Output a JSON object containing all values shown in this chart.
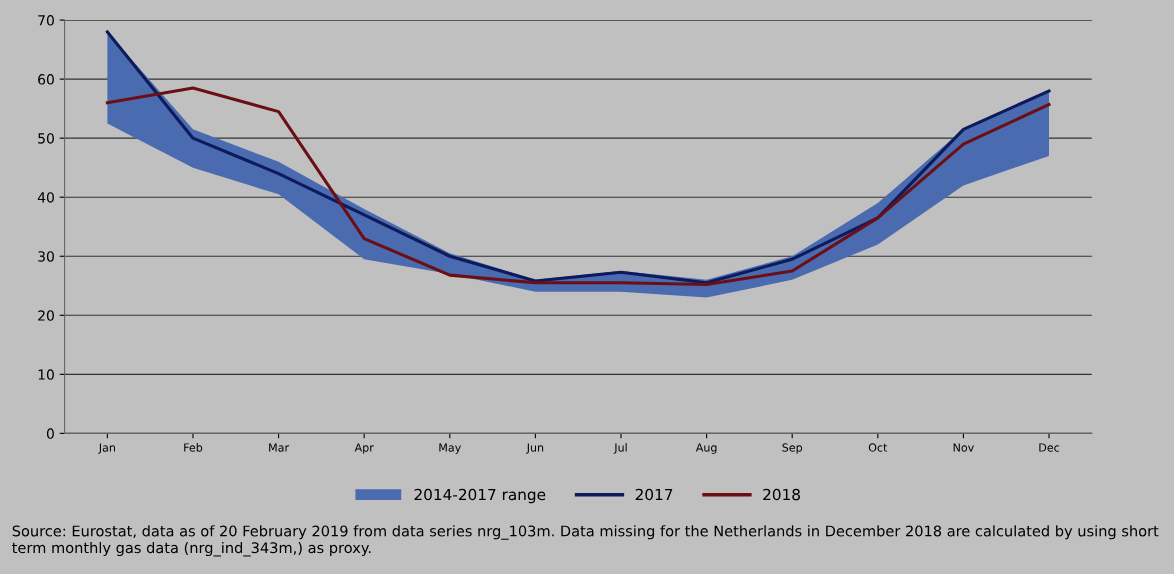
{
  "chart_data": {
    "type": "line",
    "categories": [
      "Jan",
      "Feb",
      "Mar",
      "Apr",
      "May",
      "Jun",
      "Jul",
      "Aug",
      "Sep",
      "Oct",
      "Nov",
      "Dec"
    ],
    "series": [
      {
        "name": "2014-2017 range",
        "color": "#4a6bb0",
        "values": [
          null,
          null,
          null,
          null,
          null,
          null,
          null,
          null,
          null,
          null,
          null,
          null
        ],
        "upper": [
          68,
          51.5,
          46,
          38,
          30.5,
          26,
          27.5,
          26,
          30,
          39,
          51.5,
          58
        ],
        "lower": [
          52.5,
          45,
          40.5,
          29.5,
          27,
          24,
          24,
          23,
          26,
          32,
          42,
          47
        ]
      },
      {
        "name": "2017",
        "type": "line",
        "color": "#0d1a5c",
        "values": [
          68,
          50,
          44,
          37,
          30,
          25.8,
          27.3,
          25.5,
          29.5,
          36.5,
          51.5,
          58
        ]
      },
      {
        "name": "2018",
        "type": "line",
        "color": "#6b0f14",
        "values": [
          56,
          58.5,
          54.5,
          33,
          26.8,
          25.5,
          25.5,
          25.2,
          27.5,
          36.5,
          49,
          55.7
        ]
      }
    ],
    "ylim": [
      0,
      70
    ],
    "yticks": [
      0,
      10,
      20,
      30,
      40,
      50,
      60,
      70
    ],
    "grid": "y",
    "legend": "bottom",
    "marker": "none",
    "line_style": "solid",
    "annotations": [
      "Source: Eurostat, data as of 20 February 2019 from data series nrg_103m. Data missing for the Netherlands in December 2018 are calculated by using short term monthly gas data (nrg_ind_343m,) as proxy."
    ]
  }
}
